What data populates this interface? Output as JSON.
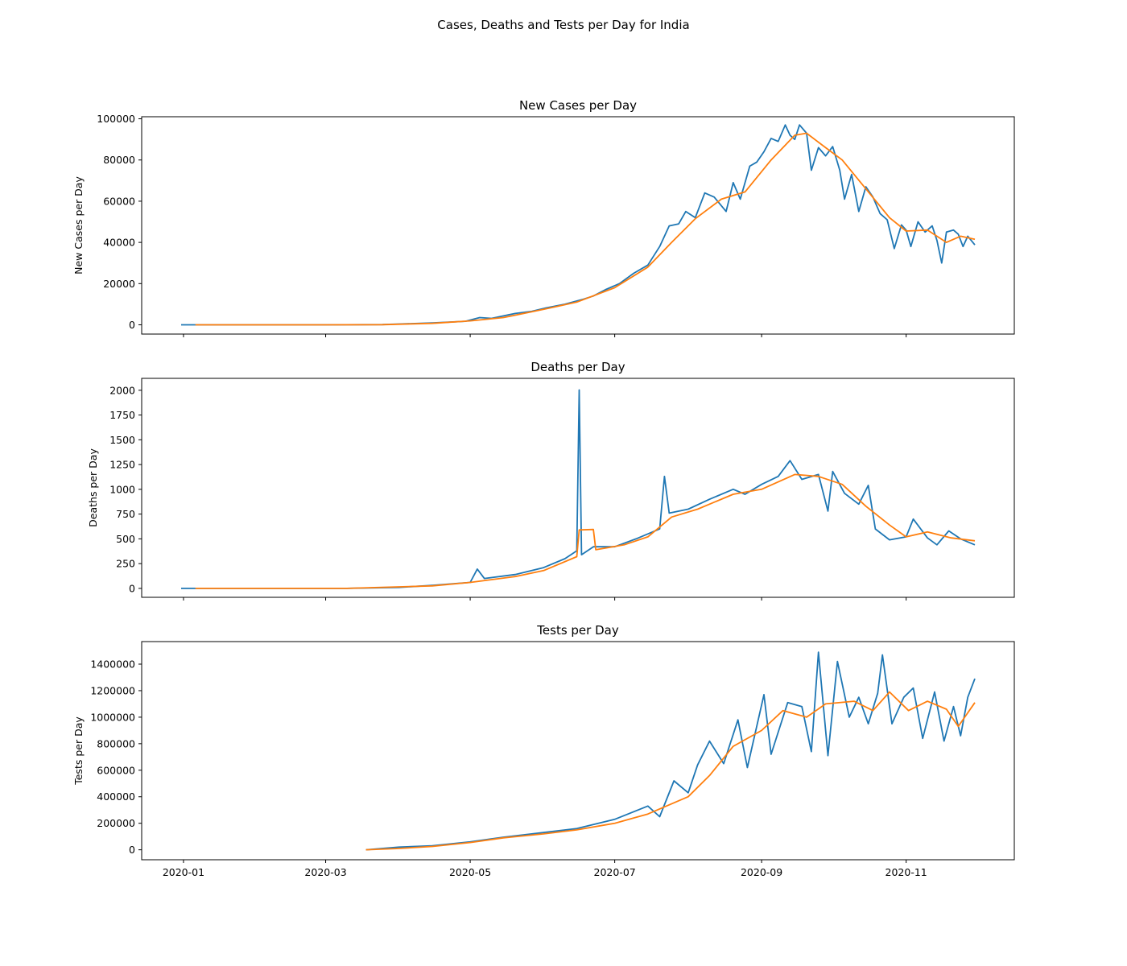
{
  "figure_title": "Cases, Deaths and Tests per Day for India",
  "colors": {
    "raw": "#1f77b4",
    "avg": "#ff7f0e"
  },
  "chart_data": [
    {
      "type": "line",
      "title": "New Cases per Day",
      "ylabel": "New Cases per Day",
      "xlabel": "",
      "ylim": [
        -4500,
        101000
      ],
      "yticks": [
        0,
        20000,
        40000,
        60000,
        80000,
        100000
      ],
      "ytick_labels": [
        "0",
        "20000",
        "40000",
        "60000",
        "80000",
        "100000"
      ],
      "xticks": [
        "2020-01-01",
        "2020-03-01",
        "2020-05-01",
        "2020-07-01",
        "2020-09-01",
        "2020-11-01"
      ],
      "show_xtick_labels": false,
      "series": [
        {
          "color": "#1f77b4",
          "points": [
            [
              "2019-12-31",
              0
            ],
            [
              "2020-03-01",
              0
            ],
            [
              "2020-03-25",
              100
            ],
            [
              "2020-04-01",
              400
            ],
            [
              "2020-04-15",
              900
            ],
            [
              "2020-04-29",
              1700
            ],
            [
              "2020-05-05",
              3500
            ],
            [
              "2020-05-10",
              3100
            ],
            [
              "2020-05-20",
              5500
            ],
            [
              "2020-05-27",
              6500
            ],
            [
              "2020-06-02",
              8200
            ],
            [
              "2020-06-10",
              10000
            ],
            [
              "2020-06-18",
              12500
            ],
            [
              "2020-06-22",
              14000
            ],
            [
              "2020-06-27",
              17000
            ],
            [
              "2020-07-03",
              20000
            ],
            [
              "2020-07-09",
              25000
            ],
            [
              "2020-07-15",
              29000
            ],
            [
              "2020-07-20",
              38000
            ],
            [
              "2020-07-24",
              48000
            ],
            [
              "2020-07-28",
              49000
            ],
            [
              "2020-07-31",
              55000
            ],
            [
              "2020-08-04",
              52000
            ],
            [
              "2020-08-08",
              64000
            ],
            [
              "2020-08-12",
              62000
            ],
            [
              "2020-08-17",
              55000
            ],
            [
              "2020-08-20",
              69000
            ],
            [
              "2020-08-23",
              61000
            ],
            [
              "2020-08-27",
              77000
            ],
            [
              "2020-08-30",
              79000
            ],
            [
              "2020-09-02",
              84000
            ],
            [
              "2020-09-05",
              90500
            ],
            [
              "2020-09-08",
              89000
            ],
            [
              "2020-09-11",
              97000
            ],
            [
              "2020-09-13",
              92000
            ],
            [
              "2020-09-15",
              90000
            ],
            [
              "2020-09-17",
              97000
            ],
            [
              "2020-09-20",
              93000
            ],
            [
              "2020-09-22",
              75000
            ],
            [
              "2020-09-25",
              86000
            ],
            [
              "2020-09-28",
              82000
            ],
            [
              "2020-10-01",
              86500
            ],
            [
              "2020-10-04",
              75000
            ],
            [
              "2020-10-06",
              61000
            ],
            [
              "2020-10-09",
              73000
            ],
            [
              "2020-10-12",
              55000
            ],
            [
              "2020-10-15",
              67000
            ],
            [
              "2020-10-18",
              62000
            ],
            [
              "2020-10-21",
              54000
            ],
            [
              "2020-10-24",
              51000
            ],
            [
              "2020-10-27",
              37000
            ],
            [
              "2020-10-30",
              48500
            ],
            [
              "2020-11-01",
              46000
            ],
            [
              "2020-11-03",
              38000
            ],
            [
              "2020-11-06",
              50000
            ],
            [
              "2020-11-09",
              45000
            ],
            [
              "2020-11-12",
              48000
            ],
            [
              "2020-11-14",
              41000
            ],
            [
              "2020-11-16",
              30000
            ],
            [
              "2020-11-18",
              45000
            ],
            [
              "2020-11-21",
              46000
            ],
            [
              "2020-11-23",
              44000
            ],
            [
              "2020-11-25",
              38000
            ],
            [
              "2020-11-27",
              43000
            ],
            [
              "2020-11-30",
              38800
            ]
          ]
        },
        {
          "color": "#ff7f0e",
          "points": [
            [
              "2020-01-06",
              0
            ],
            [
              "2020-03-01",
              0
            ],
            [
              "2020-03-25",
              80
            ],
            [
              "2020-04-15",
              700
            ],
            [
              "2020-05-01",
              1900
            ],
            [
              "2020-05-15",
              3500
            ],
            [
              "2020-06-01",
              7500
            ],
            [
              "2020-06-15",
              11000
            ],
            [
              "2020-07-01",
              18000
            ],
            [
              "2020-07-15",
              28000
            ],
            [
              "2020-07-25",
              40000
            ],
            [
              "2020-08-04",
              51500
            ],
            [
              "2020-08-15",
              61000
            ],
            [
              "2020-08-25",
              64500
            ],
            [
              "2020-09-05",
              80000
            ],
            [
              "2020-09-15",
              92000
            ],
            [
              "2020-09-20",
              93000
            ],
            [
              "2020-09-28",
              86000
            ],
            [
              "2020-10-05",
              80000
            ],
            [
              "2020-10-15",
              66000
            ],
            [
              "2020-10-25",
              52000
            ],
            [
              "2020-11-01",
              45500
            ],
            [
              "2020-11-10",
              46000
            ],
            [
              "2020-11-18",
              40000
            ],
            [
              "2020-11-24",
              43000
            ],
            [
              "2020-11-30",
              41500
            ]
          ]
        }
      ]
    },
    {
      "type": "line",
      "title": "Deaths per Day",
      "ylabel": "Deaths per Day",
      "xlabel": "",
      "ylim": [
        -90,
        2120
      ],
      "yticks": [
        0,
        250,
        500,
        750,
        1000,
        1250,
        1500,
        1750,
        2000
      ],
      "ytick_labels": [
        "0",
        "250",
        "500",
        "750",
        "1000",
        "1250",
        "1500",
        "1750",
        "2000"
      ],
      "xticks": [
        "2020-01-01",
        "2020-03-01",
        "2020-05-01",
        "2020-07-01",
        "2020-09-01",
        "2020-11-01"
      ],
      "show_xtick_labels": false,
      "series": [
        {
          "color": "#1f77b4",
          "points": [
            [
              "2019-12-31",
              0
            ],
            [
              "2020-03-10",
              0
            ],
            [
              "2020-04-01",
              10
            ],
            [
              "2020-04-15",
              30
            ],
            [
              "2020-05-01",
              60
            ],
            [
              "2020-05-04",
              195
            ],
            [
              "2020-05-07",
              100
            ],
            [
              "2020-05-20",
              140
            ],
            [
              "2020-06-01",
              210
            ],
            [
              "2020-06-10",
              300
            ],
            [
              "2020-06-15",
              380
            ],
            [
              "2020-06-16",
              2003
            ],
            [
              "2020-06-17",
              340
            ],
            [
              "2020-06-22",
              420
            ],
            [
              "2020-07-01",
              420
            ],
            [
              "2020-07-10",
              500
            ],
            [
              "2020-07-20",
              600
            ],
            [
              "2020-07-22",
              1130
            ],
            [
              "2020-07-24",
              760
            ],
            [
              "2020-08-01",
              800
            ],
            [
              "2020-08-10",
              900
            ],
            [
              "2020-08-20",
              1000
            ],
            [
              "2020-08-25",
              950
            ],
            [
              "2020-09-01",
              1050
            ],
            [
              "2020-09-08",
              1130
            ],
            [
              "2020-09-13",
              1290
            ],
            [
              "2020-09-18",
              1100
            ],
            [
              "2020-09-25",
              1150
            ],
            [
              "2020-09-29",
              780
            ],
            [
              "2020-10-01",
              1180
            ],
            [
              "2020-10-06",
              960
            ],
            [
              "2020-10-12",
              850
            ],
            [
              "2020-10-16",
              1040
            ],
            [
              "2020-10-19",
              600
            ],
            [
              "2020-10-25",
              490
            ],
            [
              "2020-11-01",
              520
            ],
            [
              "2020-11-04",
              700
            ],
            [
              "2020-11-10",
              510
            ],
            [
              "2020-11-14",
              440
            ],
            [
              "2020-11-19",
              580
            ],
            [
              "2020-11-24",
              500
            ],
            [
              "2020-11-30",
              440
            ]
          ]
        },
        {
          "color": "#ff7f0e",
          "points": [
            [
              "2020-01-06",
              0
            ],
            [
              "2020-03-10",
              0
            ],
            [
              "2020-04-15",
              25
            ],
            [
              "2020-05-01",
              60
            ],
            [
              "2020-05-20",
              120
            ],
            [
              "2020-06-01",
              180
            ],
            [
              "2020-06-15",
              320
            ],
            [
              "2020-06-16",
              590
            ],
            [
              "2020-06-22",
              595
            ],
            [
              "2020-06-23",
              390
            ],
            [
              "2020-07-05",
              440
            ],
            [
              "2020-07-15",
              520
            ],
            [
              "2020-07-25",
              720
            ],
            [
              "2020-08-05",
              800
            ],
            [
              "2020-08-20",
              950
            ],
            [
              "2020-09-01",
              1000
            ],
            [
              "2020-09-15",
              1150
            ],
            [
              "2020-09-25",
              1130
            ],
            [
              "2020-10-05",
              1050
            ],
            [
              "2020-10-15",
              830
            ],
            [
              "2020-10-25",
              640
            ],
            [
              "2020-11-01",
              520
            ],
            [
              "2020-11-10",
              570
            ],
            [
              "2020-11-20",
              510
            ],
            [
              "2020-11-30",
              480
            ]
          ]
        }
      ]
    },
    {
      "type": "line",
      "title": "Tests per Day",
      "ylabel": "Tests per Day",
      "xlabel": "",
      "ylim": [
        -75000,
        1570000
      ],
      "yticks": [
        0,
        200000,
        400000,
        600000,
        800000,
        1000000,
        1200000,
        1400000
      ],
      "ytick_labels": [
        "0",
        "200000",
        "400000",
        "600000",
        "800000",
        "1000000",
        "1200000",
        "1400000"
      ],
      "xticks": [
        "2020-01-01",
        "2020-03-01",
        "2020-05-01",
        "2020-07-01",
        "2020-09-01",
        "2020-11-01"
      ],
      "xtick_labels": [
        "2020-01",
        "2020-03",
        "2020-05",
        "2020-07",
        "2020-09",
        "2020-11"
      ],
      "show_xtick_labels": true,
      "series": [
        {
          "color": "#1f77b4",
          "points": [
            [
              "2020-03-18",
              0
            ],
            [
              "2020-04-01",
              20000
            ],
            [
              "2020-04-15",
              30000
            ],
            [
              "2020-05-01",
              60000
            ],
            [
              "2020-05-15",
              95000
            ],
            [
              "2020-06-01",
              130000
            ],
            [
              "2020-06-15",
              160000
            ],
            [
              "2020-07-01",
              230000
            ],
            [
              "2020-07-15",
              330000
            ],
            [
              "2020-07-20",
              250000
            ],
            [
              "2020-07-26",
              520000
            ],
            [
              "2020-08-01",
              430000
            ],
            [
              "2020-08-05",
              640000
            ],
            [
              "2020-08-10",
              820000
            ],
            [
              "2020-08-16",
              650000
            ],
            [
              "2020-08-22",
              980000
            ],
            [
              "2020-08-26",
              620000
            ],
            [
              "2020-09-02",
              1170000
            ],
            [
              "2020-09-05",
              720000
            ],
            [
              "2020-09-12",
              1110000
            ],
            [
              "2020-09-18",
              1080000
            ],
            [
              "2020-09-22",
              740000
            ],
            [
              "2020-09-25",
              1490000
            ],
            [
              "2020-09-29",
              710000
            ],
            [
              "2020-10-03",
              1420000
            ],
            [
              "2020-10-08",
              1000000
            ],
            [
              "2020-10-12",
              1150000
            ],
            [
              "2020-10-16",
              950000
            ],
            [
              "2020-10-20",
              1180000
            ],
            [
              "2020-10-22",
              1470000
            ],
            [
              "2020-10-26",
              950000
            ],
            [
              "2020-10-31",
              1150000
            ],
            [
              "2020-11-04",
              1220000
            ],
            [
              "2020-11-08",
              840000
            ],
            [
              "2020-11-13",
              1190000
            ],
            [
              "2020-11-17",
              820000
            ],
            [
              "2020-11-21",
              1080000
            ],
            [
              "2020-11-24",
              860000
            ],
            [
              "2020-11-27",
              1150000
            ],
            [
              "2020-11-30",
              1290000
            ]
          ]
        },
        {
          "color": "#ff7f0e",
          "points": [
            [
              "2020-03-18",
              0
            ],
            [
              "2020-04-01",
              10000
            ],
            [
              "2020-04-15",
              25000
            ],
            [
              "2020-05-01",
              55000
            ],
            [
              "2020-05-15",
              90000
            ],
            [
              "2020-06-01",
              120000
            ],
            [
              "2020-06-15",
              150000
            ],
            [
              "2020-07-01",
              200000
            ],
            [
              "2020-07-15",
              270000
            ],
            [
              "2020-08-01",
              400000
            ],
            [
              "2020-08-10",
              560000
            ],
            [
              "2020-08-20",
              780000
            ],
            [
              "2020-09-01",
              900000
            ],
            [
              "2020-09-10",
              1050000
            ],
            [
              "2020-09-20",
              1000000
            ],
            [
              "2020-09-28",
              1100000
            ],
            [
              "2020-10-10",
              1120000
            ],
            [
              "2020-10-18",
              1050000
            ],
            [
              "2020-10-25",
              1190000
            ],
            [
              "2020-11-02",
              1050000
            ],
            [
              "2020-11-10",
              1120000
            ],
            [
              "2020-11-18",
              1060000
            ],
            [
              "2020-11-23",
              930000
            ],
            [
              "2020-11-30",
              1110000
            ]
          ]
        }
      ]
    }
  ]
}
